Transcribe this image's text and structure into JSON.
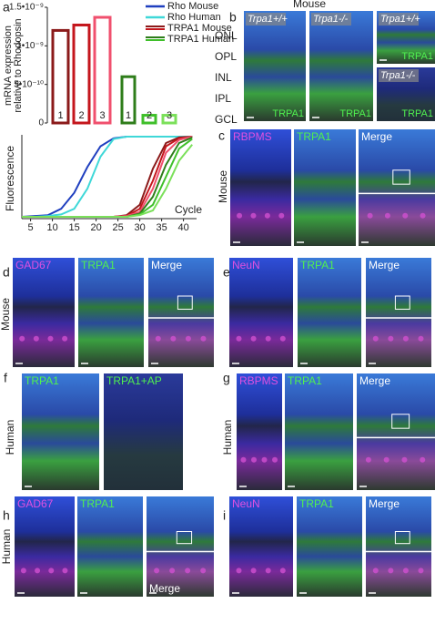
{
  "chart_data": [
    {
      "type": "bar",
      "ylabel": [
        "mRNA expression",
        "relative to Rhodopsin"
      ],
      "categories": [
        "1",
        "2",
        "3"
      ],
      "series": [
        {
          "name": "TRPA1 Mouse",
          "color": "#c4161c",
          "colors": [
            "#8b1a1a",
            "#c4161c",
            "#f0506e"
          ],
          "values": [
            1.2e-09,
            1.27e-09,
            1.37e-09
          ]
        },
        {
          "name": "TRPA1 Human",
          "color": "#3fbf2a",
          "colors": [
            "#2e7d1a",
            "#3fbf2a",
            "#7be05a"
          ],
          "values": [
            6e-10,
            1e-10,
            1e-10
          ]
        }
      ],
      "ylim": [
        0,
        1.5e-09
      ],
      "yticks": [
        0,
        {
          "value": 5e-10,
          "label": "5•10⁻¹⁰"
        },
        {
          "value": 1e-09,
          "label": "1•10⁻⁹"
        },
        {
          "value": 1.5e-09,
          "label": "1.5•10⁻⁹"
        }
      ]
    },
    {
      "type": "line",
      "xlabel": "Cycle",
      "ylabel": "Fluorescence",
      "x": [
        3,
        6,
        9,
        12,
        15,
        18,
        21,
        24,
        27,
        30,
        33,
        36,
        39,
        42
      ],
      "series": [
        {
          "name": "Rho Mouse",
          "color": "#1f3fbf",
          "values": [
            0,
            1,
            2,
            10,
            30,
            62,
            88,
            98,
            100,
            100,
            100,
            100,
            100,
            100
          ]
        },
        {
          "name": "Rho Human",
          "color": "#3fd8d8",
          "values": [
            0,
            0,
            1,
            3,
            10,
            35,
            75,
            97,
            100,
            100,
            100,
            100,
            100,
            100
          ]
        },
        {
          "color": "#8b1a1a",
          "values": [
            0,
            0,
            0,
            0,
            0,
            0,
            0,
            0,
            2,
            15,
            60,
            92,
            99,
            100
          ]
        },
        {
          "color": "#c4161c",
          "values": [
            0,
            0,
            0,
            0,
            0,
            0,
            0,
            0,
            1,
            10,
            45,
            88,
            98,
            100
          ]
        },
        {
          "color": "#f0506e",
          "values": [
            0,
            0,
            0,
            0,
            0,
            0,
            0,
            0,
            1,
            6,
            35,
            80,
            96,
            100
          ]
        },
        {
          "color": "#2e7d1a",
          "values": [
            0,
            0,
            0,
            0,
            0,
            0,
            0,
            0,
            0,
            4,
            25,
            65,
            92,
            99
          ]
        },
        {
          "color": "#3fbf2a",
          "values": [
            0,
            0,
            0,
            0,
            0,
            0,
            0,
            0,
            0,
            3,
            15,
            50,
            85,
            97
          ]
        },
        {
          "color": "#7be05a",
          "values": [
            0,
            0,
            0,
            0,
            0,
            0,
            0,
            0,
            0,
            2,
            8,
            35,
            70,
            90
          ]
        }
      ],
      "xlim": [
        3,
        43
      ],
      "ylim": [
        0,
        100
      ],
      "xticks": [
        5,
        10,
        15,
        20,
        25,
        30,
        35,
        40
      ]
    }
  ],
  "panels": {
    "a": {
      "label": "a"
    },
    "b": {
      "label": "b",
      "title": "Mouse",
      "genotypes": [
        "Trpa1+/+",
        "Trpa1-/-",
        "Trpa1+/+",
        "Trpa1-/-"
      ],
      "layers": [
        "ONL",
        "OPL",
        "INL",
        "IPL",
        "GCL"
      ],
      "stains": [
        "TRPA1",
        "TRPA1",
        "TRPA1",
        "TRPA1"
      ]
    },
    "c": {
      "label": "c",
      "species": "Mouse",
      "channels": [
        "RBPMS",
        "TRPA1",
        "Merge"
      ]
    },
    "d": {
      "label": "d",
      "species": "Mouse",
      "channels": [
        "GAD67",
        "TRPA1",
        "Merge"
      ]
    },
    "e": {
      "label": "e",
      "channels": [
        "NeuN",
        "TRPA1",
        "Merge"
      ]
    },
    "f": {
      "label": "f",
      "species": "Human",
      "channels": [
        "TRPA1",
        "TRPA1+AP"
      ]
    },
    "g": {
      "label": "g",
      "species": "Human",
      "channels": [
        "RBPMS",
        "TRPA1",
        "Merge"
      ]
    },
    "h": {
      "label": "h",
      "species": "Human",
      "channels": [
        "GAD67",
        "TRPA1",
        "Merge"
      ]
    },
    "i": {
      "label": "i",
      "channels": [
        "NeuN",
        "TRPA1",
        "Merge"
      ]
    }
  }
}
